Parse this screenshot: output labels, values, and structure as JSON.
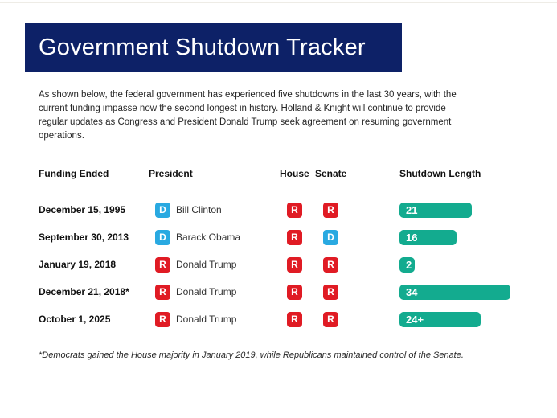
{
  "page": {
    "title": "Government Shutdown Tracker",
    "intro": "As shown below, the federal government has experienced five shutdowns in the last 30 years, with the current funding impasse now the second longest in history. Holland & Knight will continue to provide regular updates as Congress and President Donald Trump seek agreement on resuming government operations.",
    "footnote": "*Democrats gained the House majority in January 2019, while Republicans maintained control of the Senate."
  },
  "colors": {
    "navy": "#0d2167",
    "teal": "#13ab8f",
    "republican_red": "#e01b24",
    "democrat_blue": "#29a9e1"
  },
  "table": {
    "headers": [
      "Funding Ended",
      "President",
      "House",
      "Senate",
      "Shutdown Length"
    ],
    "rows": [
      {
        "funding_ended": "December 15, 1995",
        "president_party": "D",
        "president": "Bill Clinton",
        "house": "R",
        "senate": "R",
        "length_label": "21",
        "length_days": 21
      },
      {
        "funding_ended": "September 30, 2013",
        "president_party": "D",
        "president": "Barack Obama",
        "house": "R",
        "senate": "D",
        "length_label": "16",
        "length_days": 16
      },
      {
        "funding_ended": "January 19, 2018",
        "president_party": "R",
        "president": "Donald Trump",
        "house": "R",
        "senate": "R",
        "length_label": "2",
        "length_days": 2
      },
      {
        "funding_ended": "December 21, 2018*",
        "president_party": "R",
        "president": "Donald Trump",
        "house": "R",
        "senate": "R",
        "length_label": "34",
        "length_days": 34
      },
      {
        "funding_ended": "October 1, 2025",
        "president_party": "R",
        "president": "Donald Trump",
        "house": "R",
        "senate": "R",
        "length_label": "24+",
        "length_days": 24
      }
    ]
  },
  "chart_data": {
    "type": "bar",
    "orientation": "horizontal",
    "title": "Shutdown Length",
    "categories": [
      "December 15, 1995",
      "September 30, 2013",
      "January 19, 2018",
      "December 21, 2018*",
      "October 1, 2025"
    ],
    "values": [
      21,
      16,
      2,
      34,
      24
    ],
    "value_labels": [
      "21",
      "16",
      "2",
      "34",
      "24+"
    ],
    "series": [
      {
        "name": "Shutdown Length (days)",
        "values": [
          21,
          16,
          2,
          34,
          24
        ]
      }
    ],
    "grid": false,
    "legend": false,
    "bar_color": "#13ab8f",
    "value_label_position": "inside-left"
  }
}
